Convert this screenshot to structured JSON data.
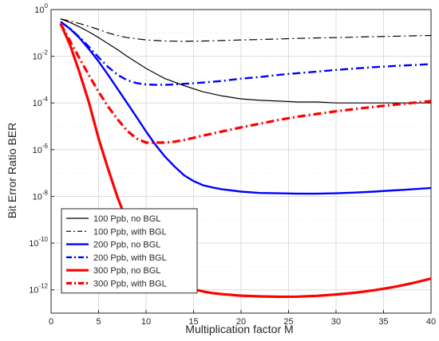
{
  "chart_data": {
    "type": "line",
    "xlabel": "Multiplication factor M",
    "ylabel": "Bit Error Ratio BER",
    "scale": {
      "x": "linear",
      "y": "log"
    },
    "xlim": [
      0,
      40
    ],
    "ylim": [
      1e-13,
      1
    ],
    "grid": true,
    "legend_position": "bottom-left",
    "xticks": [
      0,
      5,
      10,
      15,
      20,
      25,
      30,
      35,
      40
    ],
    "xtick_labels": [
      "0",
      "5",
      "10",
      "15",
      "20",
      "25",
      "30",
      "35",
      "40"
    ],
    "yticks": [
      {
        "value": 1,
        "base": "10",
        "exp": "0"
      },
      {
        "value": 0.01,
        "base": "10",
        "exp": "-2"
      },
      {
        "value": 0.0001,
        "base": "10",
        "exp": "-4"
      },
      {
        "value": 1e-06,
        "base": "10",
        "exp": "-6"
      },
      {
        "value": 1e-08,
        "base": "10",
        "exp": "-8"
      },
      {
        "value": 1e-10,
        "base": "10",
        "exp": "-10"
      },
      {
        "value": 1e-12,
        "base": "10",
        "exp": "-12"
      }
    ],
    "series": [
      {
        "name": "100 Ppb, no BGL",
        "color": "#000000",
        "dash": "solid",
        "width": 1.2,
        "x": [
          1,
          2,
          3,
          4,
          5,
          6,
          7,
          8,
          9,
          10,
          11,
          12,
          14,
          16,
          18,
          20,
          22,
          24,
          26,
          28,
          30,
          32,
          34,
          36,
          38,
          40
        ],
        "y": [
          0.4,
          0.28,
          0.18,
          0.11,
          0.063,
          0.035,
          0.019,
          0.01,
          0.0055,
          0.003,
          0.0018,
          0.0011,
          0.00055,
          0.0003,
          0.0002,
          0.00015,
          0.00013,
          0.00012,
          0.00011,
          0.00011,
          0.0001,
          0.0001,
          0.0001,
          0.0001,
          0.0001,
          0.0001
        ]
      },
      {
        "name": "100 Ppb, with BGL",
        "color": "#000000",
        "dash": "dashdot",
        "width": 1.2,
        "x": [
          1,
          2,
          3,
          4,
          5,
          6,
          7,
          8,
          10,
          12,
          14,
          16,
          18,
          20,
          22,
          24,
          26,
          28,
          30,
          32,
          34,
          36,
          38,
          40
        ],
        "y": [
          0.4,
          0.32,
          0.25,
          0.19,
          0.14,
          0.1,
          0.077,
          0.063,
          0.05,
          0.045,
          0.044,
          0.045,
          0.047,
          0.05,
          0.052,
          0.055,
          0.058,
          0.061,
          0.063,
          0.066,
          0.069,
          0.072,
          0.075,
          0.078
        ]
      },
      {
        "name": "200 Ppb, no BGL",
        "color": "#0000ff",
        "dash": "solid",
        "width": 2.4,
        "x": [
          1,
          2,
          3,
          4,
          5,
          6,
          7,
          8,
          9,
          10,
          11,
          12,
          13,
          14,
          15,
          16,
          17,
          18,
          20,
          22,
          24,
          26,
          28,
          30,
          32,
          34,
          36,
          38,
          40
        ],
        "y": [
          0.3,
          0.15,
          0.06,
          0.02,
          0.006,
          0.0016,
          0.0004,
          0.0001,
          2.5e-05,
          6e-06,
          1.6e-06,
          5e-07,
          1.9e-07,
          8e-08,
          4.5e-08,
          3e-08,
          2.4e-08,
          2e-08,
          1.6e-08,
          1.4e-08,
          1.35e-08,
          1.3e-08,
          1.3e-08,
          1.35e-08,
          1.45e-08,
          1.6e-08,
          1.8e-08,
          2e-08,
          2.3e-08
        ]
      },
      {
        "name": "200 Ppb, with BGL",
        "color": "#0000ff",
        "dash": "dashdot",
        "width": 2.4,
        "x": [
          1,
          2,
          3,
          4,
          5,
          6,
          7,
          8,
          9,
          10,
          11,
          12,
          13,
          14,
          15,
          16,
          18,
          20,
          22,
          24,
          26,
          28,
          30,
          32,
          34,
          36,
          38,
          40
        ],
        "y": [
          0.3,
          0.15,
          0.065,
          0.025,
          0.009,
          0.0035,
          0.0016,
          0.00095,
          0.00071,
          0.00062,
          0.0006,
          0.0006,
          0.00062,
          0.00066,
          0.0007,
          0.00075,
          0.00088,
          0.0011,
          0.0013,
          0.0016,
          0.0019,
          0.0022,
          0.0026,
          0.003,
          0.0034,
          0.0038,
          0.0042,
          0.0046
        ]
      },
      {
        "name": "300 Ppb, no BGL",
        "color": "#ff0000",
        "dash": "solid",
        "width": 3.2,
        "x": [
          1,
          2,
          3,
          4,
          5,
          6,
          7,
          8,
          9,
          10,
          11,
          12,
          13,
          14,
          15,
          16,
          17,
          18,
          20,
          22,
          24,
          26,
          28,
          30,
          32,
          34,
          36,
          38,
          40
        ],
        "y": [
          0.25,
          0.03,
          0.002,
          0.0001,
          3e-06,
          1.5e-07,
          9e-09,
          8e-10,
          1e-10,
          2e-11,
          7e-12,
          3.5e-12,
          2e-12,
          1.4e-12,
          1.05e-12,
          8.5e-13,
          7.2e-13,
          6.5e-13,
          5.6e-13,
          5.2e-13,
          5e-13,
          5.1e-13,
          5.5e-13,
          6.3e-13,
          7.5e-13,
          9.5e-13,
          1.3e-12,
          1.9e-12,
          3e-12
        ]
      },
      {
        "name": "300 Ppb, with BGL",
        "color": "#ff0000",
        "dash": "dashdot",
        "width": 3.2,
        "x": [
          1,
          2,
          3,
          4,
          5,
          6,
          7,
          8,
          9,
          10,
          11,
          12,
          13,
          14,
          15,
          16,
          18,
          20,
          22,
          24,
          26,
          28,
          30,
          32,
          34,
          36,
          38,
          40
        ],
        "y": [
          0.25,
          0.045,
          0.008,
          0.0015,
          0.0003,
          7e-05,
          2e-05,
          6.5e-06,
          3e-06,
          2e-06,
          2e-06,
          2e-06,
          2.2e-06,
          2.6e-06,
          3.2e-06,
          4e-06,
          6e-06,
          9e-06,
          1.3e-05,
          1.9e-05,
          2.6e-05,
          3.4e-05,
          4.4e-05,
          5.5e-05,
          6.8e-05,
          8.3e-05,
          0.0001,
          0.00012
        ]
      }
    ]
  }
}
